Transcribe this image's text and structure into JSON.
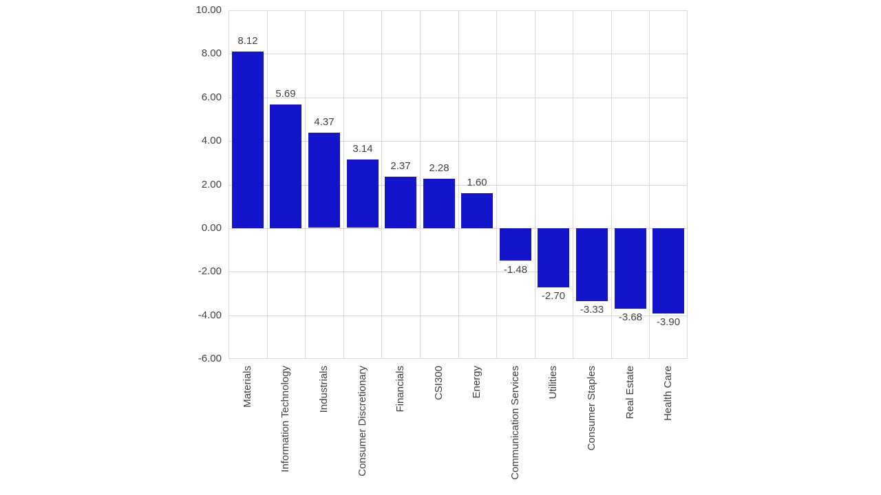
{
  "chart_data": {
    "type": "bar",
    "title": "",
    "xlabel": "",
    "ylabel": "",
    "categories": [
      "Materials",
      "Information Technology",
      "Industrials",
      "Consumer Discretionary",
      "Financials",
      "CSI300",
      "Energy",
      "Communication Services",
      "Utilities",
      "Consumer Staples",
      "Real Estate",
      "Health Care"
    ],
    "values": [
      8.12,
      5.69,
      4.37,
      3.14,
      2.37,
      2.28,
      1.6,
      -1.48,
      -2.7,
      -3.33,
      -3.68,
      -3.9
    ],
    "data_labels": [
      "8.12",
      "5.69",
      "4.37",
      "3.14",
      "2.37",
      "2.28",
      "1.60",
      "-1.48",
      "-2.70",
      "-3.33",
      "-3.68",
      "-3.90"
    ],
    "ylim": [
      -6,
      10
    ],
    "ytick_step": 2,
    "yticks": [
      "10.00",
      "8.00",
      "6.00",
      "4.00",
      "2.00",
      "0.00",
      "-2.00",
      "-4.00",
      "-6.00"
    ],
    "grid": true,
    "legend": "none",
    "bar_color": "#1414cc",
    "gridline_color": "#d9d9d9",
    "text_color": "#404040"
  }
}
